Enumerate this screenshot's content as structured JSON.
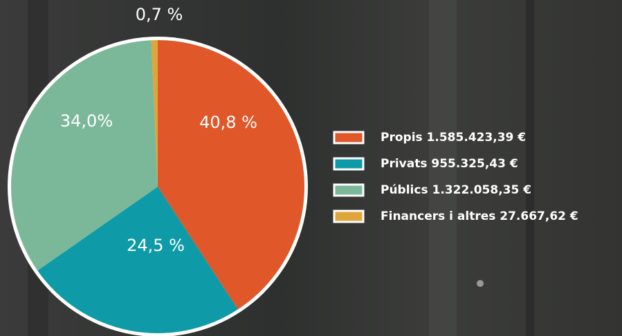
{
  "chart_data": {
    "type": "pie",
    "categories": [
      "Propis 1.585.423,39 €",
      "Privats 955.325,43 €",
      "Públics 1.322.058,35 €",
      "Financers i altres 27.667,62 €"
    ],
    "values": [
      40.8,
      24.5,
      34.0,
      0.7
    ],
    "value_labels": [
      "40,8 %",
      "24,5 %",
      "34,0%",
      "0,7 %"
    ],
    "colors": [
      "#e0572a",
      "#0e9aa7",
      "#7bb89a",
      "#e0a53a"
    ]
  }
}
